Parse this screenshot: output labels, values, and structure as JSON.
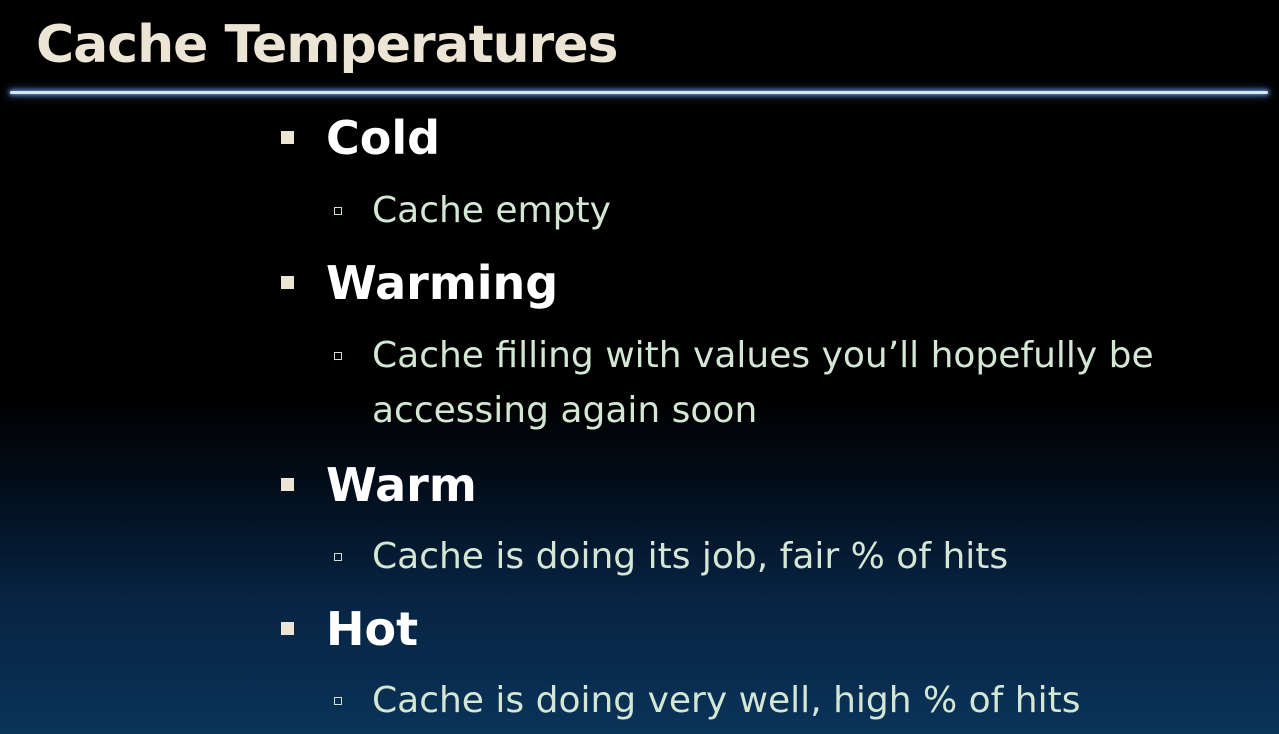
{
  "slide": {
    "title": "Cache Temperatures",
    "items": [
      {
        "heading": "Cold",
        "detail_lines": [
          "Cache empty"
        ]
      },
      {
        "heading": "Warming",
        "detail_lines": [
          "Cache filling with values you’ll hopefully be",
          "accessing again soon"
        ]
      },
      {
        "heading": "Warm",
        "detail_lines": [
          "Cache is doing its job, fair % of hits"
        ]
      },
      {
        "heading": "Hot",
        "detail_lines": [
          "Cache is doing very well, high % of hits"
        ]
      }
    ]
  },
  "colors": {
    "title_text": "#ece4d4",
    "heading_text": "#ffffff",
    "detail_text": "#d4e6d4",
    "rule": "#d8e6f6",
    "background_top": "#000000",
    "background_bottom": "#0a3358"
  },
  "icons": {
    "level1_bullet": "filled-square-bullet-icon",
    "level2_bullet": "hollow-square-bullet-icon"
  }
}
